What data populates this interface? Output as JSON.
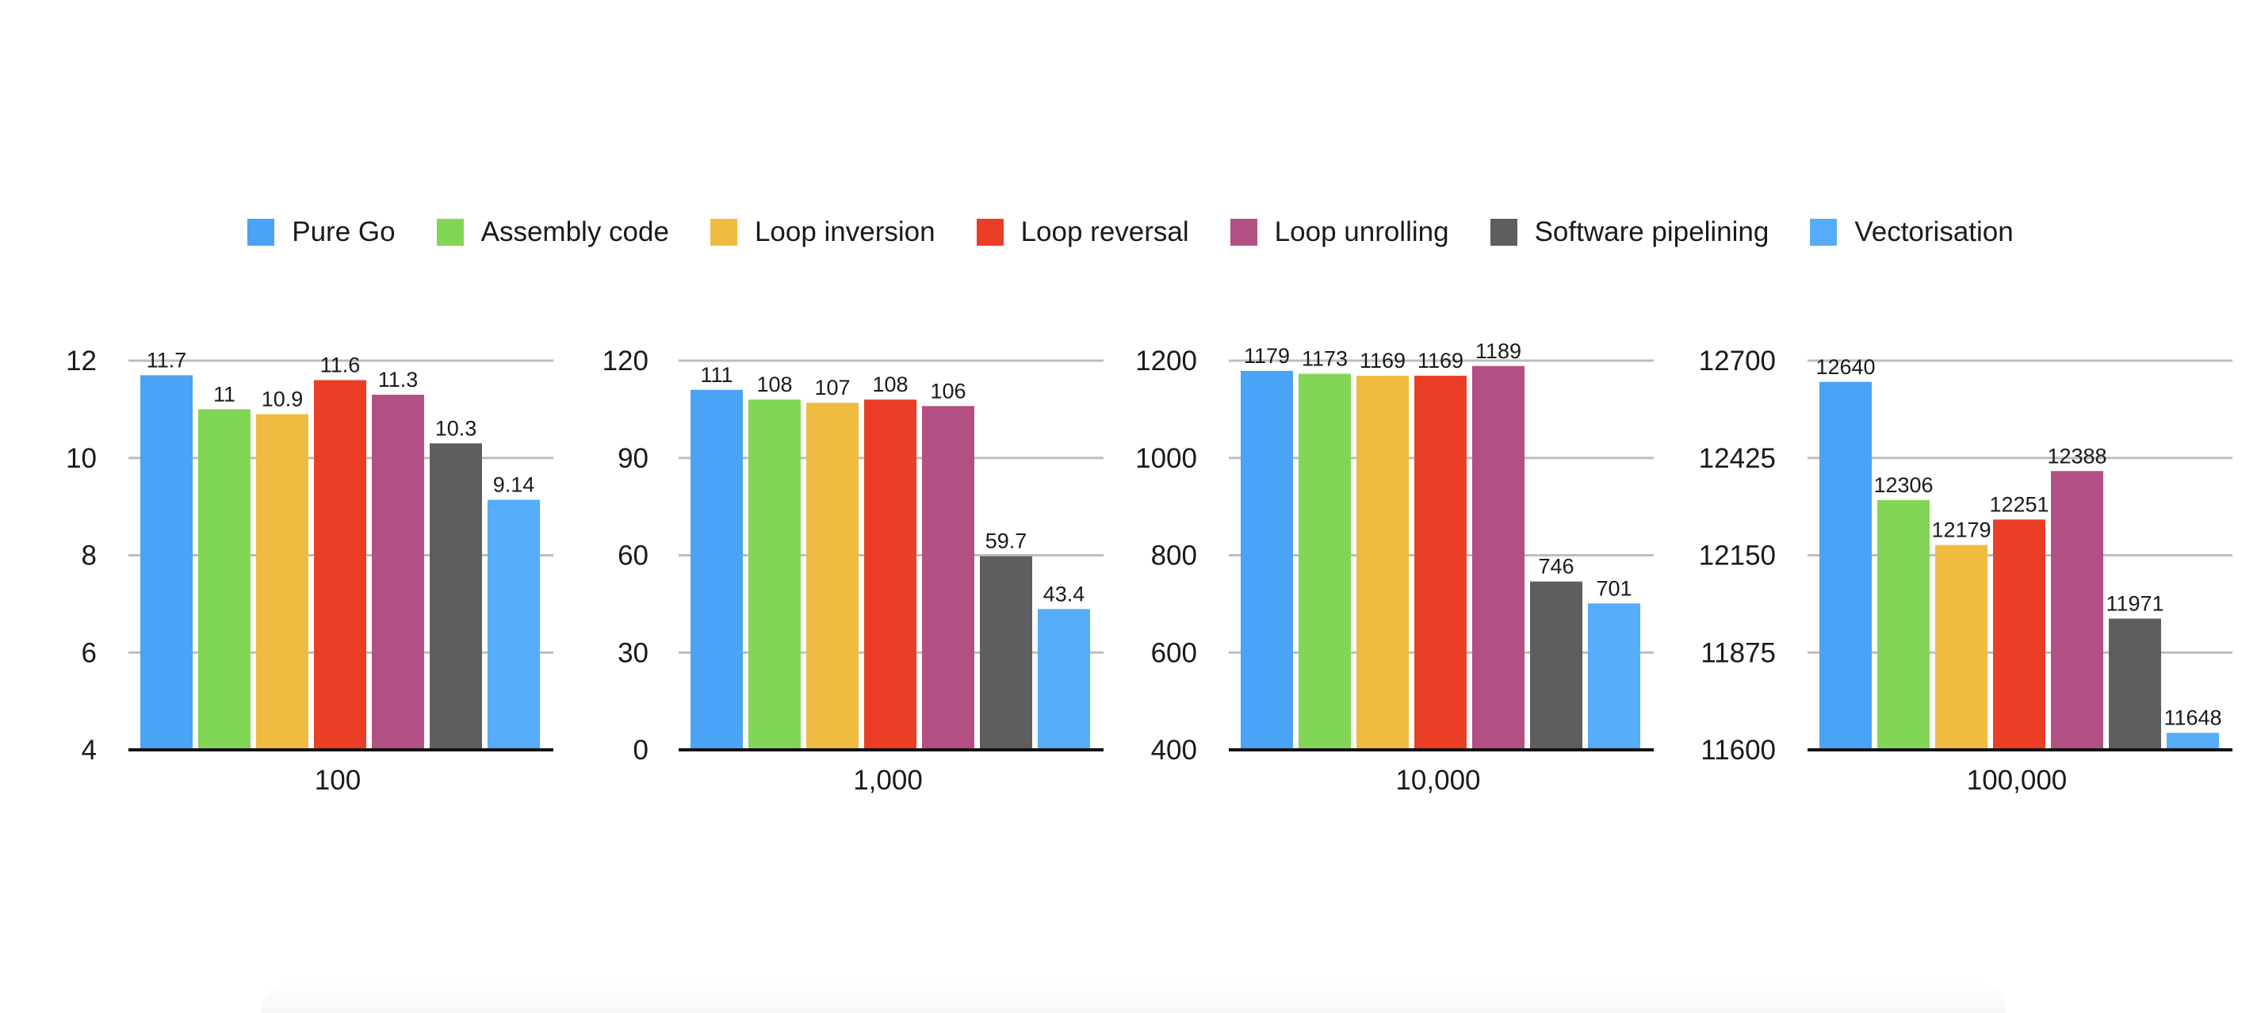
{
  "legend": [
    {
      "label": "Pure Go",
      "color": "#4aa3f5"
    },
    {
      "label": "Assembly code",
      "color": "#82d655"
    },
    {
      "label": "Loop inversion",
      "color": "#f0bb41"
    },
    {
      "label": "Loop reversal",
      "color": "#ea3f26"
    },
    {
      "label": "Loop unrolling",
      "color": "#b24f83"
    },
    {
      "label": "Software pipelining",
      "color": "#5e5e5e"
    },
    {
      "label": "Vectorisation",
      "color": "#55acf8"
    }
  ],
  "chart_data": [
    {
      "type": "bar",
      "category": "100",
      "ylim": [
        4,
        12
      ],
      "yticks": [
        "4",
        "6",
        "8",
        "10",
        "12"
      ],
      "series": [
        "Pure Go",
        "Assembly code",
        "Loop inversion",
        "Loop reversal",
        "Loop unrolling",
        "Software pipelining",
        "Vectorisation"
      ],
      "values": [
        11.7,
        11,
        10.9,
        11.6,
        11.3,
        10.3,
        9.14
      ],
      "labels": [
        "11.7",
        "11",
        "10.9",
        "11.6",
        "11.3",
        "10.3",
        "9.14"
      ]
    },
    {
      "type": "bar",
      "category": "1,000",
      "ylim": [
        0,
        120
      ],
      "yticks": [
        "0",
        "30",
        "60",
        "90",
        "120"
      ],
      "series": [
        "Pure Go",
        "Assembly code",
        "Loop inversion",
        "Loop reversal",
        "Loop unrolling",
        "Software pipelining",
        "Vectorisation"
      ],
      "values": [
        111,
        108,
        107,
        108,
        106,
        59.7,
        43.4
      ],
      "labels": [
        "111",
        "108",
        "107",
        "108",
        "106",
        "59.7",
        "43.4"
      ]
    },
    {
      "type": "bar",
      "category": "10,000",
      "ylim": [
        400,
        1200
      ],
      "yticks": [
        "400",
        "600",
        "800",
        "1000",
        "1200"
      ],
      "series": [
        "Pure Go",
        "Assembly code",
        "Loop inversion",
        "Loop reversal",
        "Loop unrolling",
        "Software pipelining",
        "Vectorisation"
      ],
      "values": [
        1179,
        1173,
        1169,
        1169,
        1189,
        746,
        701
      ],
      "labels": [
        "1179",
        "1173",
        "1169",
        "1169",
        "1189",
        "746",
        "701"
      ]
    },
    {
      "type": "bar",
      "category": "100,000",
      "ylim": [
        11600,
        12700
      ],
      "yticks": [
        "11600",
        "11875",
        "12150",
        "12425",
        "12700"
      ],
      "series": [
        "Pure Go",
        "Assembly code",
        "Loop inversion",
        "Loop reversal",
        "Loop unrolling",
        "Software pipelining",
        "Vectorisation"
      ],
      "values": [
        12640,
        12306,
        12179,
        12251,
        12388,
        11971,
        11648
      ],
      "labels": [
        "12640",
        "12306",
        "12179",
        "12251",
        "12388",
        "11971",
        "11648"
      ]
    }
  ]
}
